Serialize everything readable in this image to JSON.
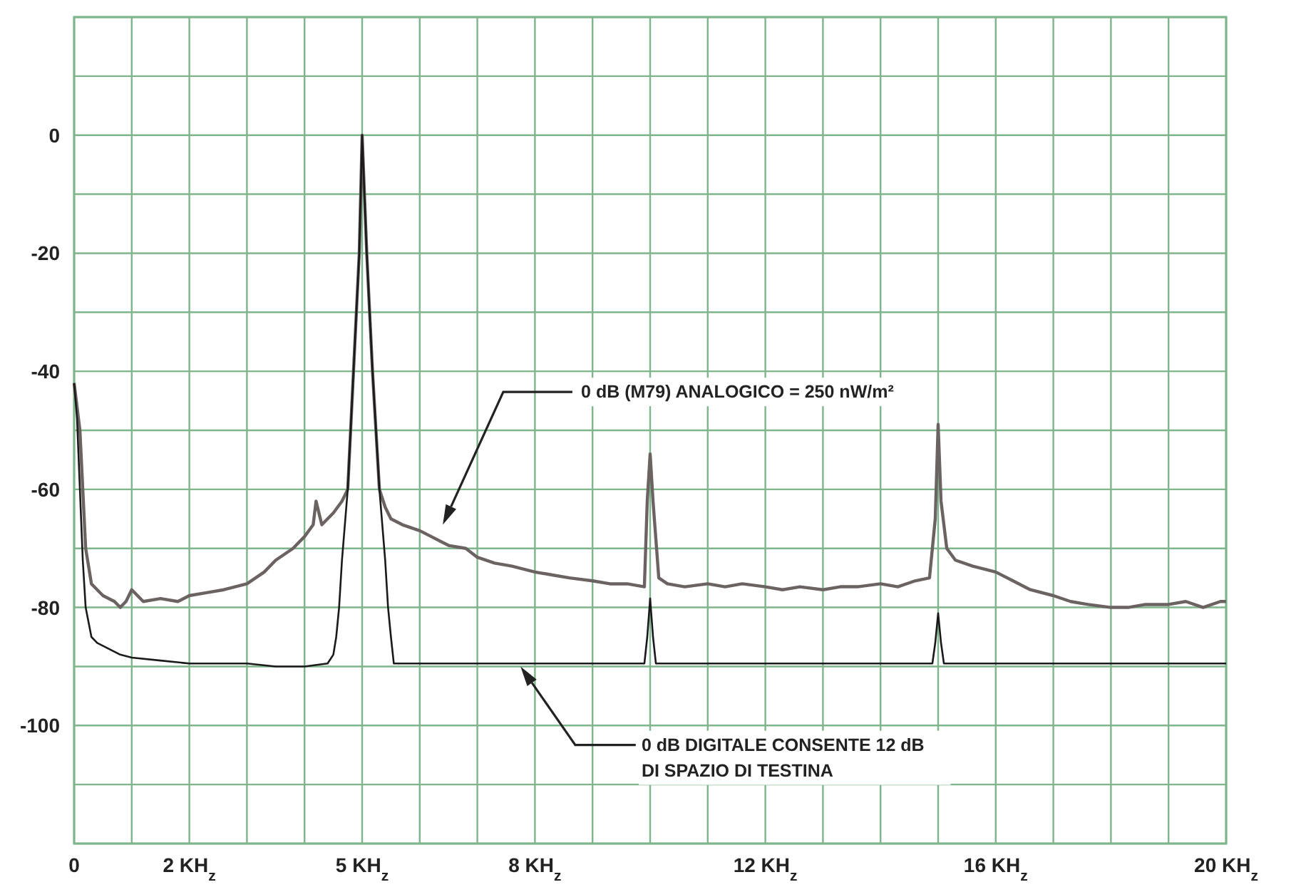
{
  "chart_data": {
    "type": "line",
    "xlim": [
      0,
      20
    ],
    "ylim": [
      -120,
      20
    ],
    "xticks": [
      {
        "value": 0,
        "label": "0"
      },
      {
        "value": 1,
        "label": null
      },
      {
        "value": 2,
        "label": "2 KH$_{z}$"
      },
      {
        "value": 3,
        "label": null
      },
      {
        "value": 4,
        "label": null
      },
      {
        "value": 5,
        "label": "5 KH$_{z}$"
      },
      {
        "value": 6,
        "label": null
      },
      {
        "value": 7,
        "label": null
      },
      {
        "value": 8,
        "label": "8 KH$_{z}$"
      },
      {
        "value": 9,
        "label": null
      },
      {
        "value": 10,
        "label": null
      },
      {
        "value": 11,
        "label": null
      },
      {
        "value": 12,
        "label": "12 KH$_{z}$"
      },
      {
        "value": 13,
        "label": null
      },
      {
        "value": 14,
        "label": null
      },
      {
        "value": 15,
        "label": null
      },
      {
        "value": 16,
        "label": "16 KH$_{z}$"
      },
      {
        "value": 17,
        "label": null
      },
      {
        "value": 18,
        "label": null
      },
      {
        "value": 19,
        "label": null
      },
      {
        "value": 20,
        "label": "20 KH$_{z}$"
      }
    ],
    "yticks": [
      {
        "value": 20,
        "label": null
      },
      {
        "value": 10,
        "label": null
      },
      0,
      {
        "value": -10,
        "label": null
      },
      -20,
      {
        "value": -30,
        "label": null
      },
      -40,
      {
        "value": -50,
        "label": null
      },
      -60,
      {
        "value": -70,
        "label": null
      },
      -80,
      {
        "value": -90,
        "label": null
      },
      -100,
      {
        "value": -110,
        "label": null
      },
      {
        "value": -120,
        "label": null
      }
    ],
    "grid": true,
    "series": [
      {
        "color": "#6b6262",
        "x": [
          0,
          0.1,
          0.2,
          0.3,
          0.5,
          0.7,
          0.8,
          0.9,
          1,
          1.2,
          1.5,
          1.8,
          2,
          2.3,
          2.6,
          3,
          3.3,
          3.5,
          3.8,
          4,
          4.15,
          4.2,
          4.3,
          4.5,
          4.65,
          4.75,
          4.85,
          4.95,
          5,
          5.08,
          5.18,
          5.3,
          5.4,
          5.5,
          5.7,
          6,
          6.2,
          6.5,
          6.8,
          7,
          7.3,
          7.6,
          8,
          8.3,
          8.6,
          9,
          9.3,
          9.6,
          9.9,
          9.95,
          10,
          10.05,
          10.15,
          10.3,
          10.6,
          11,
          11.3,
          11.6,
          12,
          12.3,
          12.6,
          13,
          13.3,
          13.6,
          14,
          14.3,
          14.6,
          14.85,
          14.95,
          15,
          15.05,
          15.15,
          15.3,
          15.6,
          16,
          16.3,
          16.6,
          17,
          17.3,
          17.6,
          18,
          18.3,
          18.6,
          19,
          19.3,
          19.6,
          19.9,
          20
        ],
        "values": [
          -42,
          -50,
          -70,
          -76,
          -78,
          -79,
          -80,
          -79,
          -77,
          -79,
          -78.5,
          -79,
          -78,
          -77.5,
          -77,
          -76,
          -74,
          -72,
          -70,
          -68,
          -66,
          -62,
          -66,
          -64,
          -62,
          -60,
          -40,
          -20,
          0,
          -20,
          -40,
          -60,
          -63,
          -65,
          -66,
          -67,
          -68,
          -69.5,
          -70,
          -71.5,
          -72.5,
          -73,
          -74,
          -74.5,
          -75,
          -75.5,
          -76,
          -76,
          -76.5,
          -62,
          -54,
          -62,
          -75,
          -76,
          -76.5,
          -76,
          -76.5,
          -76,
          -76.5,
          -77,
          -76.5,
          -77,
          -76.5,
          -76.5,
          -76,
          -76.5,
          -75.5,
          -75,
          -65,
          -49,
          -62,
          -70,
          -72,
          -73,
          -74,
          -75.5,
          -77,
          -78,
          -79,
          -79.5,
          -80,
          -80,
          -79.5,
          -79.5,
          -79,
          -80,
          -79,
          -79
        ]
      },
      {
        "color": "#1a1a1a",
        "x": [
          0,
          0.05,
          0.1,
          0.15,
          0.2,
          0.3,
          0.4,
          0.6,
          0.8,
          1,
          1.5,
          2,
          2.5,
          3,
          3.5,
          4,
          4.4,
          4.5,
          4.55,
          4.6,
          4.65,
          4.75,
          4.85,
          4.95,
          5,
          5.08,
          5.18,
          5.3,
          5.4,
          5.45,
          5.5,
          5.55,
          6,
          7,
          8,
          9,
          9.9,
          9.95,
          10,
          10.05,
          10.1,
          11,
          12,
          13,
          14,
          14.9,
          14.95,
          15,
          15.05,
          15.1,
          16,
          17,
          18,
          19,
          20
        ],
        "values": [
          -42,
          -48,
          -60,
          -72,
          -80,
          -85,
          -86,
          -87,
          -88,
          -88.5,
          -89,
          -89.5,
          -89.5,
          -89.5,
          -90,
          -90,
          -89.5,
          -88,
          -85,
          -80,
          -72,
          -60,
          -40,
          -20,
          0,
          -20,
          -40,
          -60,
          -72,
          -80,
          -85,
          -89.5,
          -89.5,
          -89.5,
          -89.5,
          -89.5,
          -89.5,
          -85,
          -78.5,
          -85,
          -89.5,
          -89.5,
          -89.5,
          -89.5,
          -89.5,
          -89.5,
          -86,
          -81,
          -86,
          -89.5,
          -89.5,
          -89.5,
          -89.5,
          -89.5,
          -89.5
        ]
      }
    ],
    "annotations": [
      "0 dB (M79) ANALOGICO = 250 nW/m²",
      "0 dB DIGITALE CONSENTE 12 dB\nDI SPAZIO DI TESTINA"
    ]
  }
}
